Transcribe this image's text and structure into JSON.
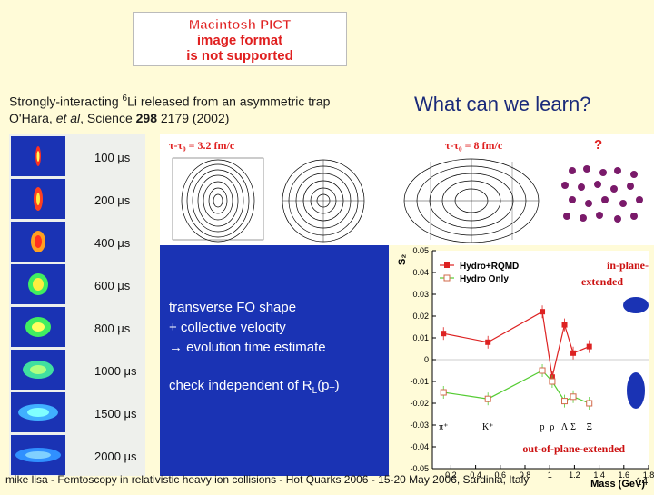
{
  "pict_notice": {
    "line1": "Macintosh PICT",
    "line2": "image format",
    "line3": "is not supported"
  },
  "caption": {
    "line1_pre": "Strongly-interacting ",
    "line1_sup": "6",
    "line1_post": "Li released from an asymmetric trap",
    "line2_pre": "O'Hara, ",
    "line2_ital": "et al",
    "line2_mid": ", Science ",
    "line2_bold": "298",
    "line2_post": " 2179 (2002)"
  },
  "question": "What can we learn?",
  "time_strip": [
    "100 μs",
    "200 μs",
    "400 μs",
    "600 μs",
    "800 μs",
    "1000 μs",
    "1500 μs",
    "2000 μs"
  ],
  "hydro_panels": {
    "left_label": "τ-τ₀ = 3.2 fm/c",
    "right_label": "τ-τ₀ = 8 fm/c",
    "unknown": "?"
  },
  "blue_box": {
    "line1": "transverse FO shape",
    "line2": "+ collective velocity",
    "line3": "→ evolution time estimate",
    "line4_pre": "check independent of R",
    "line4_sub": "L",
    "line4_post": "(p",
    "line4_sub2": "T",
    "line4_end": ")"
  },
  "annotations": {
    "in_plane": "in-plane-",
    "in_plane2": "extended",
    "out_plane": "out-of-plane-extended"
  },
  "footer": "mike lisa - Femtoscopy in relativistic heavy ion collisions - Hot Quarks 2006 - 15-20 May 2006, Sardinia, Italy",
  "page_number": "14",
  "colors": {
    "blue": "#1a33b4",
    "red": "#dd2222",
    "green": "#55cc33"
  },
  "chart_data": {
    "type": "scatter",
    "ylabel": "S₂",
    "xlabel": "Mass (GeV)",
    "y_ticks": [
      0.05,
      0.04,
      0.03,
      0.02,
      0.01,
      0,
      -0.01,
      -0.02,
      -0.03,
      -0.04,
      -0.05
    ],
    "x_ticks": [
      0.2,
      0.4,
      0.6,
      0.8,
      1,
      1.2,
      1.4,
      1.6,
      1.8
    ],
    "xlim": [
      0.05,
      1.8
    ],
    "ylim": [
      -0.05,
      0.05
    ],
    "particle_labels": [
      "π⁺",
      "K⁺",
      "p",
      "ρ",
      "Λ",
      "Σ",
      "Ξ"
    ],
    "series": [
      {
        "name": "Hydro+RQMD",
        "color": "#dd2222",
        "marker": "square",
        "x": [
          0.14,
          0.5,
          0.94,
          1.02,
          1.12,
          1.19,
          1.32
        ],
        "y": [
          0.012,
          0.008,
          0.022,
          -0.008,
          0.016,
          0.003,
          0.006
        ]
      },
      {
        "name": "Hydro Only",
        "color": "#55cc33",
        "marker": "square-open",
        "x": [
          0.14,
          0.5,
          0.94,
          1.02,
          1.12,
          1.19,
          1.32
        ],
        "y": [
          -0.015,
          -0.018,
          -0.005,
          -0.01,
          -0.019,
          -0.017,
          -0.02
        ]
      }
    ]
  }
}
